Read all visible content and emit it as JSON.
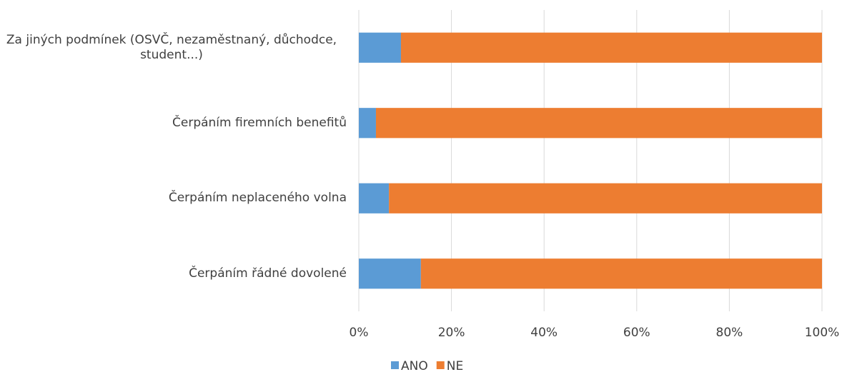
{
  "chart_data": {
    "type": "stacked-bar-horizontal",
    "categories": [
      "Za jiných podmínek (OSVČ, nezaměstnaný, důchodce, student...)",
      "Čerpáním firemních benefitů",
      "Čerpáním neplaceného volna",
      "Čerpáním řádné dovolené"
    ],
    "series": [
      {
        "name": "ANO",
        "color": "#5b9bd5",
        "values": [
          9.1,
          3.7,
          6.5,
          13.4
        ]
      },
      {
        "name": "NE",
        "color": "#ed7d31",
        "values": [
          90.9,
          96.3,
          93.5,
          86.6
        ]
      }
    ],
    "xlim": [
      0,
      100
    ],
    "xticks": [
      {
        "value": 0,
        "label": "0%"
      },
      {
        "value": 20,
        "label": "20%"
      },
      {
        "value": 40,
        "label": "40%"
      },
      {
        "value": 60,
        "label": "60%"
      },
      {
        "value": 80,
        "label": "80%"
      },
      {
        "value": 100,
        "label": "100%"
      }
    ],
    "grid": true,
    "legend": "bottom"
  }
}
